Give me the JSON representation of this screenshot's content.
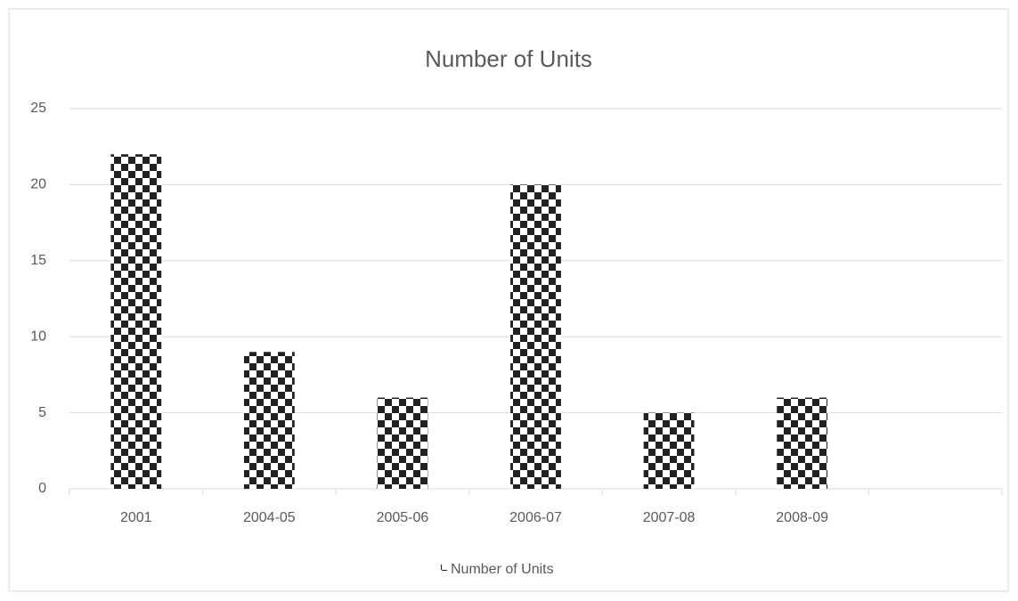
{
  "chart_data": {
    "type": "bar",
    "title": "Number of Units",
    "categories": [
      "2001",
      "2004-05",
      "2005-06",
      "2006-07",
      "2007-08",
      "2008-09",
      null
    ],
    "series": [
      {
        "name": "Number of Units",
        "color": "#222222",
        "values": [
          22,
          9,
          6,
          20,
          5,
          6,
          null
        ]
      }
    ],
    "pattern": "checkerboard",
    "ylim": [
      0,
      25
    ],
    "yticks": [
      0,
      5,
      10,
      15,
      20,
      25
    ],
    "grid": true,
    "legend": "bottom"
  }
}
